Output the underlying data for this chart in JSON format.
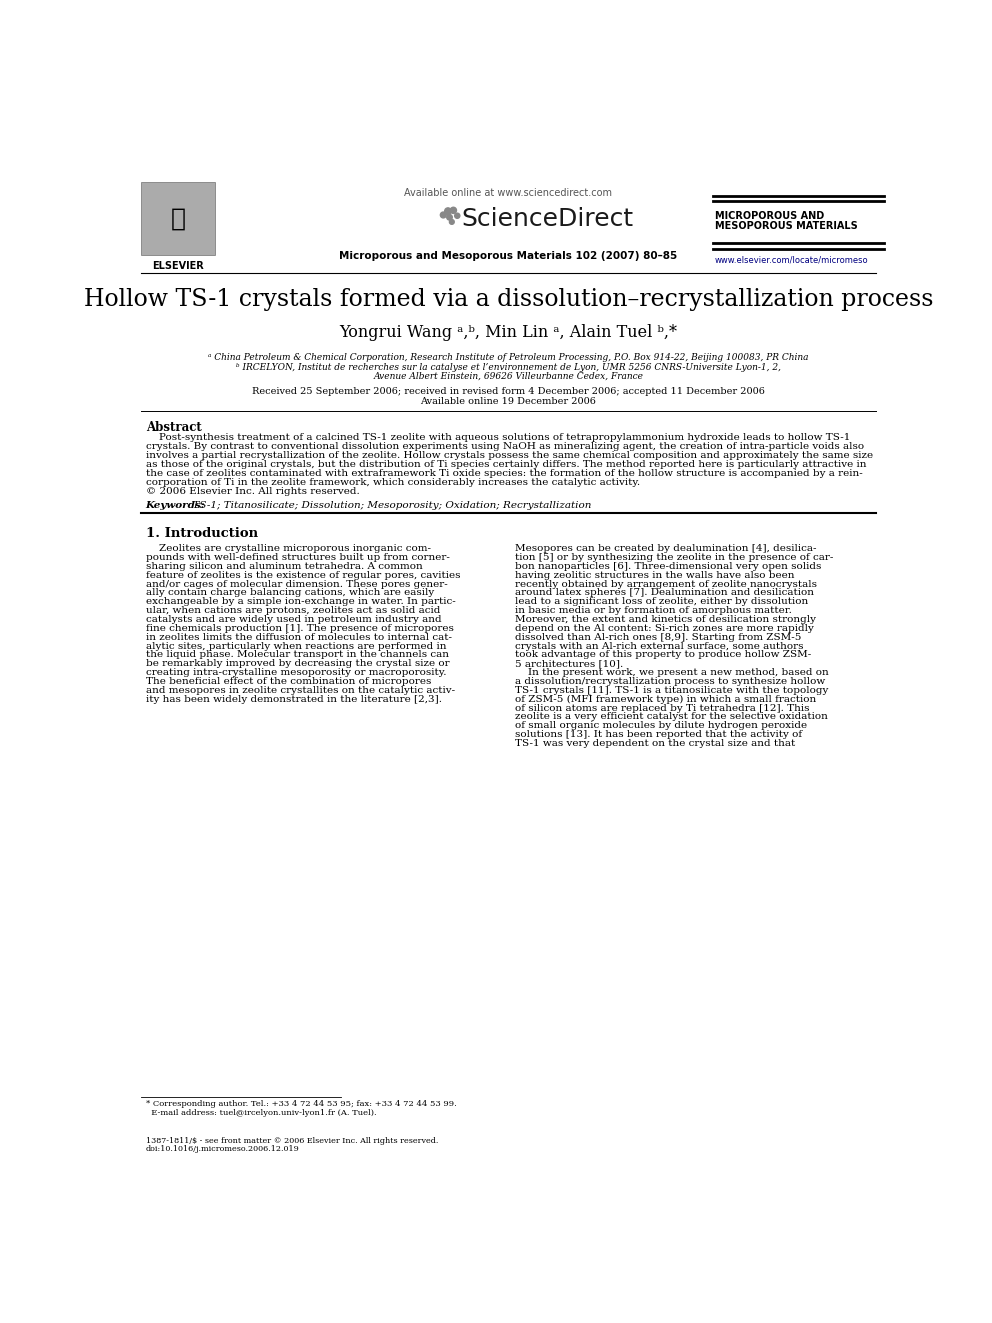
{
  "title": "Hollow TS-1 crystals formed via a dissolution–recrystallization process",
  "authors": "Yongrui Wang ᵃ,ᵇ, Min Lin ᵃ, Alain Tuel ᵇ,*",
  "affil_a": "ᵃ China Petroleum & Chemical Corporation, Research Institute of Petroleum Processing, P.O. Box 914-22, Beijing 100083, PR China",
  "affil_b": "ᵇ IRCELYON, Institut de recherches sur la catalyse et l’environnement de Lyon, UMR 5256 CNRS-Universite Lyon-1, 2,",
  "affil_b2": "Avenue Albert Einstein, 69626 Villeurbanne Cedex, France",
  "received": "Received 25 September 2006; received in revised form 4 December 2006; accepted 11 December 2006",
  "available": "Available online 19 December 2006",
  "journal_line": "Microporous and Mesoporous Materials 102 (2007) 80–85",
  "available_online": "Available online at www.sciencedirect.com",
  "sciencedirect": "ScienceDirect",
  "microporous_label_1": "MICROPOROUS AND",
  "microporous_label_2": "MESOPOROUS MATERIALS",
  "website": "www.elsevier.com/locate/micromeso",
  "abstract_title": "Abstract",
  "keywords_label": "Keywords:",
  "keywords_rest": "  TS-1; Titanosilicate; Dissolution; Mesoporosity; Oxidation; Recrystallization",
  "intro_title": "1. Introduction",
  "footnote_1": "* Corresponding author. Tel.: +33 4 72 44 53 95; fax: +33 4 72 44 53 99.",
  "footnote_2": "  E-mail address: tuel@ircelyon.univ-lyon1.fr (A. Tuel).",
  "issn_1": "1387-1811/$ - see front matter © 2006 Elsevier Inc. All rights reserved.",
  "issn_2": "doi:10.1016/j.micromeso.2006.12.019",
  "bg_color": "#ffffff",
  "abstract_lines": [
    "    Post-synthesis treatment of a calcined TS-1 zeolite with aqueous solutions of tetrapropylammonium hydroxide leads to hollow TS-1",
    "crystals. By contrast to conventional dissolution experiments using NaOH as mineralizing agent, the creation of intra-particle voids also",
    "involves a partial recrystallization of the zeolite. Hollow crystals possess the same chemical composition and approximately the same size",
    "as those of the original crystals, but the distribution of Ti species certainly differs. The method reported here is particularly attractive in",
    "the case of zeolites contaminated with extraframework Ti oxide species: the formation of the hollow structure is accompanied by a rein-",
    "corporation of Ti in the zeolite framework, which considerably increases the catalytic activity.",
    "© 2006 Elsevier Inc. All rights reserved."
  ],
  "left_col": [
    "    Zeolites are crystalline microporous inorganic com-",
    "pounds with well-defined structures built up from corner-",
    "sharing silicon and aluminum tetrahedra. A common",
    "feature of zeolites is the existence of regular pores, cavities",
    "and/or cages of molecular dimension. These pores gener-",
    "ally contain charge balancing cations, which are easily",
    "exchangeable by a simple ion-exchange in water. In partic-",
    "ular, when cations are protons, zeolites act as solid acid",
    "catalysts and are widely used in petroleum industry and",
    "fine chemicals production [1]. The presence of micropores",
    "in zeolites limits the diffusion of molecules to internal cat-",
    "alytic sites, particularly when reactions are performed in",
    "the liquid phase. Molecular transport in the channels can",
    "be remarkably improved by decreasing the crystal size or",
    "creating intra-crystalline mesoporosity or macroporosity.",
    "The beneficial effect of the combination of micropores",
    "and mesopores in zeolite crystallites on the catalytic activ-",
    "ity has been widely demonstrated in the literature [2,3]."
  ],
  "right_col": [
    "Mesopores can be created by dealumination [4], desilica-",
    "tion [5] or by synthesizing the zeolite in the presence of car-",
    "bon nanoparticles [6]. Three-dimensional very open solids",
    "having zeolitic structures in the walls have also been",
    "recently obtained by arrangement of zeolite nanocrystals",
    "around latex spheres [7]. Dealumination and desilication",
    "lead to a significant loss of zeolite, either by dissolution",
    "in basic media or by formation of amorphous matter.",
    "Moreover, the extent and kinetics of desilication strongly",
    "depend on the Al content: Si-rich zones are more rapidly",
    "dissolved than Al-rich ones [8,9]. Starting from ZSM-5",
    "crystals with an Al-rich external surface, some authors",
    "took advantage of this property to produce hollow ZSM-",
    "5 architectures [10].",
    "    In the present work, we present a new method, based on",
    "a dissolution/recrystallization process to synthesize hollow",
    "TS-1 crystals [11]. TS-1 is a titanosilicate with the topology",
    "of ZSM-5 (MFI framework type) in which a small fraction",
    "of silicon atoms are replaced by Ti tetrahedra [12]. This",
    "zeolite is a very efficient catalyst for the selective oxidation",
    "of small organic molecules by dilute hydrogen peroxide",
    "solutions [13]. It has been reported that the activity of",
    "TS-1 was very dependent on the crystal size and that"
  ]
}
